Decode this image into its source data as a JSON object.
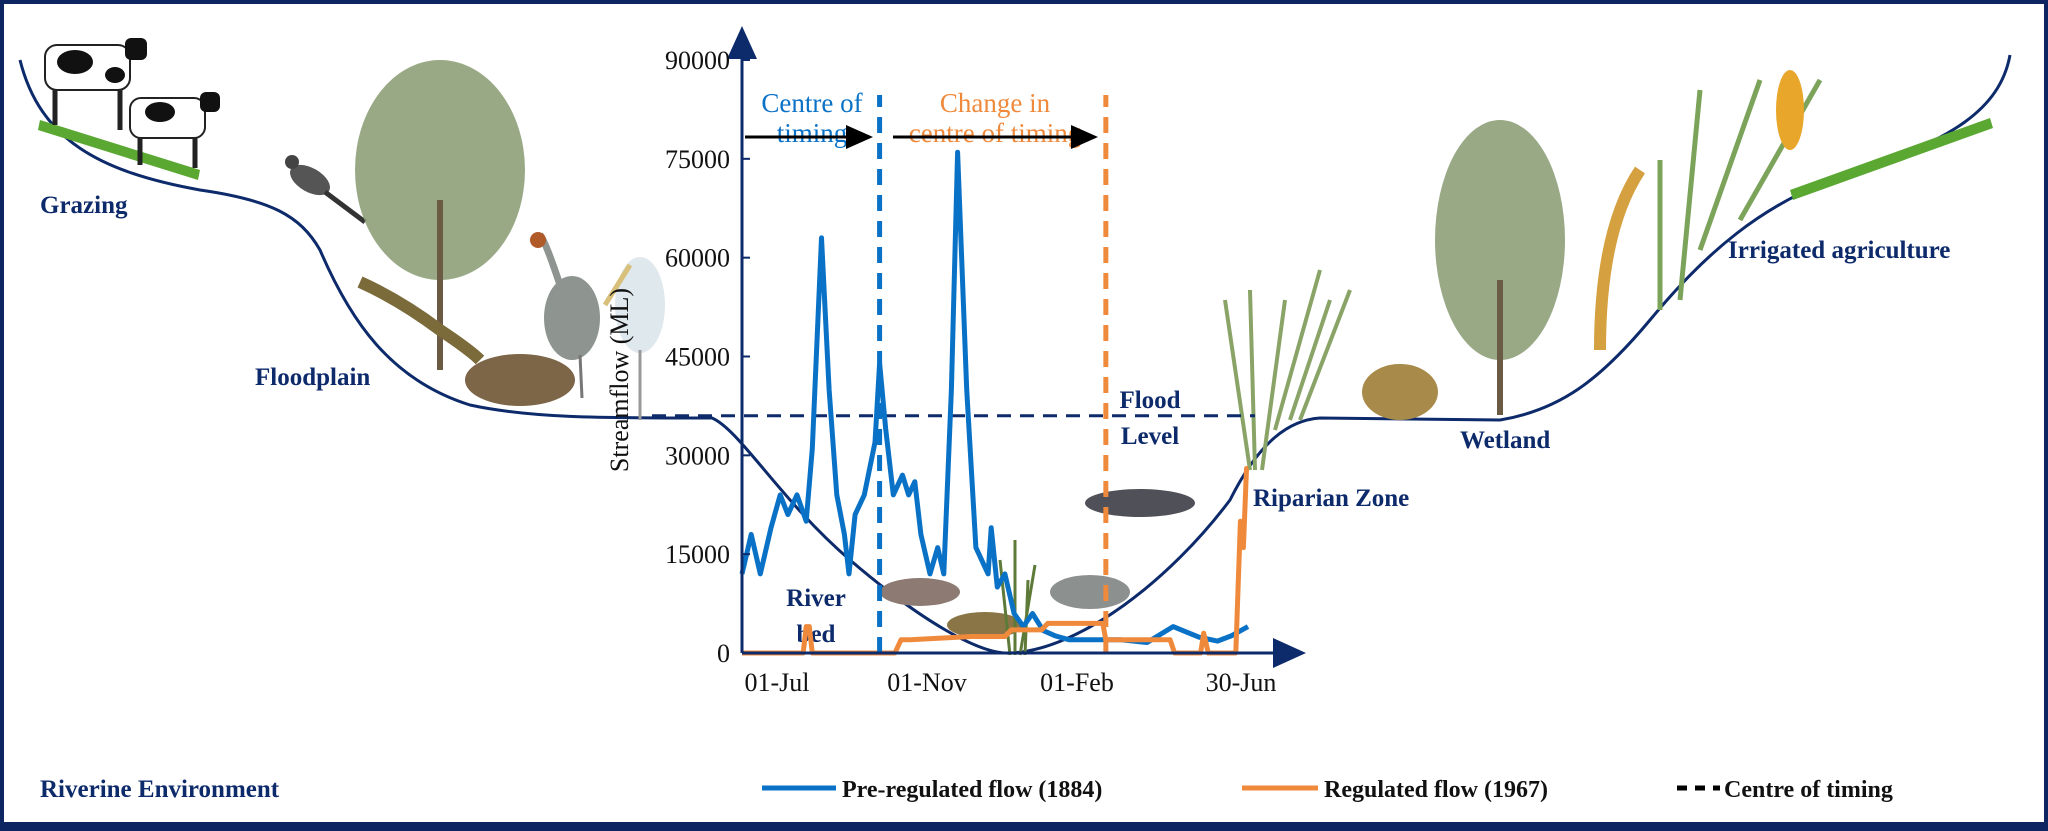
{
  "labels": {
    "grazing": "Grazing",
    "floodplain": "Floodplain",
    "river_bed_1": "River",
    "river_bed_2": "bed",
    "flood_level_1": "Flood",
    "flood_level_2": "Level",
    "riparian_zone": "Riparian Zone",
    "wetland": "Wetland",
    "irrigated_agriculture": "Irrigated agriculture",
    "riverine_environment": "Riverine Environment"
  },
  "annotations": {
    "centre_of_timing_1": "Centre of",
    "centre_of_timing_2": "timing",
    "change_centre_1": "Change in",
    "change_centre_2": "centre of timing"
  },
  "legend": {
    "pre_regulated": "Pre-regulated flow (1884)",
    "regulated": "Regulated flow (1967)",
    "centre_of_timing": "Centre of timing"
  },
  "colors": {
    "frame": "#0d2560",
    "pre_regulated": "#0a72c6",
    "regulated": "#ef8a3c",
    "valley": "#0d2a6b"
  },
  "icons": [
    "cow",
    "grass-turf",
    "bird",
    "tree",
    "goanna",
    "crane",
    "spoonbill",
    "frog",
    "fish",
    "catfish",
    "reeds",
    "rice",
    "wheat"
  ],
  "chart_data": {
    "type": "line",
    "ylabel": "Streamflow (ML)",
    "xlabel": "",
    "ylim": [
      0,
      90000
    ],
    "yticks": [
      "0",
      "15000",
      "30000",
      "45000",
      "60000",
      "75000",
      "90000"
    ],
    "xticks": [
      "01-Jul",
      "01-Nov",
      "01-Feb",
      "30-Jun"
    ],
    "x_unit": "day of water year (from 01-Jul)",
    "xlim": [
      0,
      365
    ],
    "series": [
      {
        "name": "Pre-regulated flow (1884)",
        "x": [
          0,
          6,
          12,
          19,
          25,
          30,
          36,
          42,
          46,
          52,
          57,
          62,
          67,
          70,
          74,
          80,
          87,
          90,
          94,
          99,
          105,
          109,
          113,
          117,
          123,
          128,
          132,
          137,
          141,
          147,
          153,
          161,
          163,
          167,
          172,
          178,
          184,
          190,
          197,
          205,
          214,
          231,
          248,
          265,
          282,
          299,
          311,
          320,
          331
        ],
        "y": [
          12000,
          18000,
          12000,
          19000,
          24000,
          21000,
          24000,
          20000,
          31000,
          63000,
          40000,
          24000,
          18000,
          12000,
          21000,
          24000,
          32000,
          44000,
          34000,
          24000,
          27000,
          24000,
          26000,
          18000,
          12000,
          16000,
          12000,
          40000,
          76000,
          40000,
          16000,
          12000,
          19000,
          10000,
          12000,
          6000,
          4000,
          6000,
          3400,
          2600,
          2000,
          2000,
          2000,
          1600,
          4000,
          2400,
          1800,
          2600,
          4000
        ]
      },
      {
        "name": "Regulated flow (1967)",
        "x": [
          0,
          40,
          42,
          44,
          46,
          100,
          104,
          110,
          150,
          172,
          176,
          196,
          200,
          236,
          238,
          240,
          280,
          283,
          290,
          300,
          302,
          305,
          310,
          312,
          318,
          323,
          326,
          328,
          330,
          331
        ],
        "y": [
          0,
          0,
          4000,
          4000,
          0,
          0,
          2000,
          2000,
          2500,
          2500,
          3500,
          3500,
          4500,
          4500,
          2000,
          2000,
          2000,
          0,
          0,
          0,
          3000,
          0,
          0,
          0,
          0,
          0,
          20000,
          16000,
          28000,
          28000
        ]
      }
    ],
    "centre_of_timing": {
      "pre_regulated_day": 90,
      "regulated_day": 238
    },
    "flood_level": 36000,
    "legend_placement": "bottom"
  }
}
